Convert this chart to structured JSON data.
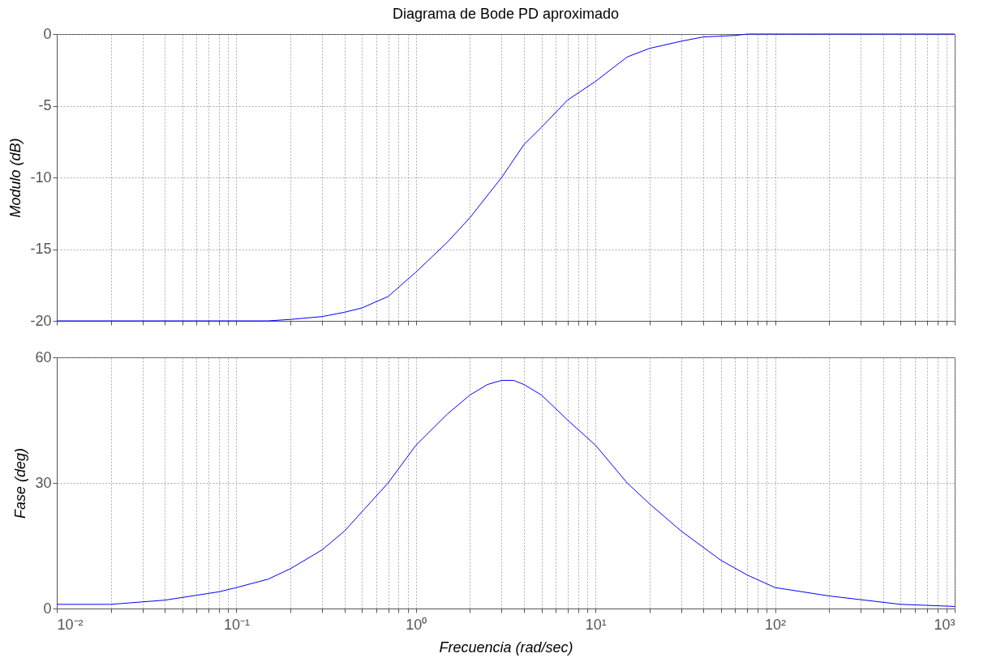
{
  "chart_data": [
    {
      "type": "line",
      "title": "Diagrama de Bode PD aproximado",
      "ylabel": "Modulo (dB)",
      "xlim": [
        0.01,
        1000
      ],
      "log": "x",
      "grid": true,
      "tick_labels": "y",
      "line_style": "solid",
      "xticks": [
        {
          "value": 0.01,
          "label": null
        },
        {
          "value": 0.02,
          "label": null
        },
        {
          "value": 0.03,
          "label": null
        },
        {
          "value": 0.04,
          "label": null
        },
        {
          "value": 0.05,
          "label": null
        },
        {
          "value": 0.06,
          "label": null
        },
        {
          "value": 0.07,
          "label": null
        },
        {
          "value": 0.08,
          "label": null
        },
        {
          "value": 0.09,
          "label": null
        },
        {
          "value": 0.1,
          "label": null
        },
        {
          "value": 0.2,
          "label": null
        },
        {
          "value": 0.3,
          "label": null
        },
        {
          "value": 0.4,
          "label": null
        },
        {
          "value": 0.5,
          "label": null
        },
        {
          "value": 0.6,
          "label": null
        },
        {
          "value": 0.7,
          "label": null
        },
        {
          "value": 0.8,
          "label": null
        },
        {
          "value": 0.9,
          "label": null
        },
        {
          "value": 1,
          "label": null
        },
        {
          "value": 2,
          "label": null
        },
        {
          "value": 3,
          "label": null
        },
        {
          "value": 4,
          "label": null
        },
        {
          "value": 5,
          "label": null
        },
        {
          "value": 6,
          "label": null
        },
        {
          "value": 7,
          "label": null
        },
        {
          "value": 8,
          "label": null
        },
        {
          "value": 9,
          "label": null
        },
        {
          "value": 10,
          "label": null
        },
        {
          "value": 20,
          "label": null
        },
        {
          "value": 30,
          "label": null
        },
        {
          "value": 40,
          "label": null
        },
        {
          "value": 50,
          "label": null
        },
        {
          "value": 60,
          "label": null
        },
        {
          "value": 70,
          "label": null
        },
        {
          "value": 80,
          "label": null
        },
        {
          "value": 90,
          "label": null
        },
        {
          "value": 100,
          "label": null
        },
        {
          "value": 200,
          "label": null
        },
        {
          "value": 300,
          "label": null
        },
        {
          "value": 400,
          "label": null
        },
        {
          "value": 500,
          "label": null
        },
        {
          "value": 600,
          "label": null
        },
        {
          "value": 700,
          "label": null
        },
        {
          "value": 800,
          "label": null
        },
        {
          "value": 900,
          "label": null
        },
        {
          "value": 1000,
          "label": null
        }
      ],
      "ylim": [
        -20,
        0
      ],
      "yticks": [
        -20,
        -15,
        -10,
        -5,
        0
      ],
      "series": [
        {
          "color": "#0000ff",
          "x": [
            0.01,
            0.02,
            0.04,
            0.08,
            0.1,
            0.15,
            0.2,
            0.3,
            0.4,
            0.5,
            0.7,
            1,
            1.5,
            2,
            3,
            4,
            5,
            7,
            10,
            15,
            20,
            30,
            40,
            60,
            70,
            100,
            200,
            500,
            1000
          ],
          "values": [
            -20,
            -20,
            -20,
            -20,
            -20,
            -20,
            -19.9,
            -19.7,
            -19.4,
            -19.1,
            -18.3,
            -16.6,
            -14.5,
            -12.8,
            -10,
            -7.7,
            -6.5,
            -4.6,
            -3.3,
            -1.6,
            -1,
            -0.5,
            -0.2,
            -0.1,
            0,
            0,
            0,
            0,
            0
          ]
        }
      ]
    },
    {
      "type": "line",
      "xlabel": "Frecuencia  (rad/sec)",
      "ylabel": "Fase (deg)",
      "xlim": [
        0.01,
        1000
      ],
      "log": "x",
      "grid": true,
      "line_style": "solid",
      "xticks": [
        {
          "value": 0.01,
          "label": "10⁻²"
        },
        {
          "value": 0.02,
          "label": null
        },
        {
          "value": 0.03,
          "label": null
        },
        {
          "value": 0.04,
          "label": null
        },
        {
          "value": 0.05,
          "label": null
        },
        {
          "value": 0.06,
          "label": null
        },
        {
          "value": 0.07,
          "label": null
        },
        {
          "value": 0.08,
          "label": null
        },
        {
          "value": 0.09,
          "label": null
        },
        {
          "value": 0.1,
          "label": "10⁻¹"
        },
        {
          "value": 0.2,
          "label": null
        },
        {
          "value": 0.3,
          "label": null
        },
        {
          "value": 0.4,
          "label": null
        },
        {
          "value": 0.5,
          "label": null
        },
        {
          "value": 0.6,
          "label": null
        },
        {
          "value": 0.7,
          "label": null
        },
        {
          "value": 0.8,
          "label": null
        },
        {
          "value": 0.9,
          "label": null
        },
        {
          "value": 1,
          "label": "10⁰"
        },
        {
          "value": 2,
          "label": null
        },
        {
          "value": 3,
          "label": null
        },
        {
          "value": 4,
          "label": null
        },
        {
          "value": 5,
          "label": null
        },
        {
          "value": 6,
          "label": null
        },
        {
          "value": 7,
          "label": null
        },
        {
          "value": 8,
          "label": null
        },
        {
          "value": 9,
          "label": null
        },
        {
          "value": 10,
          "label": "10¹"
        },
        {
          "value": 20,
          "label": null
        },
        {
          "value": 30,
          "label": null
        },
        {
          "value": 40,
          "label": null
        },
        {
          "value": 50,
          "label": null
        },
        {
          "value": 60,
          "label": null
        },
        {
          "value": 70,
          "label": null
        },
        {
          "value": 80,
          "label": null
        },
        {
          "value": 90,
          "label": null
        },
        {
          "value": 100,
          "label": "10²"
        },
        {
          "value": 200,
          "label": null
        },
        {
          "value": 300,
          "label": null
        },
        {
          "value": 400,
          "label": null
        },
        {
          "value": 500,
          "label": null
        },
        {
          "value": 600,
          "label": null
        },
        {
          "value": 700,
          "label": null
        },
        {
          "value": 800,
          "label": null
        },
        {
          "value": 900,
          "label": null
        },
        {
          "value": 1000,
          "label": "10³"
        }
      ],
      "ylim": [
        0,
        60
      ],
      "yticks": [
        0,
        30,
        60
      ],
      "series": [
        {
          "color": "#0000ff",
          "x": [
            0.01,
            0.02,
            0.04,
            0.08,
            0.1,
            0.15,
            0.2,
            0.3,
            0.4,
            0.7,
            1,
            1.5,
            2,
            2.5,
            3,
            3.5,
            4,
            5,
            7,
            10,
            15,
            20,
            30,
            50,
            70,
            100,
            200,
            500,
            1000
          ],
          "values": [
            1,
            1,
            2,
            4,
            5,
            7,
            9.5,
            14,
            18.5,
            30,
            39,
            46.5,
            51,
            53.5,
            54.5,
            54.5,
            53.5,
            51,
            45,
            39,
            30,
            25,
            18.5,
            11.5,
            8,
            5,
            3,
            1,
            0.5
          ]
        }
      ]
    }
  ]
}
